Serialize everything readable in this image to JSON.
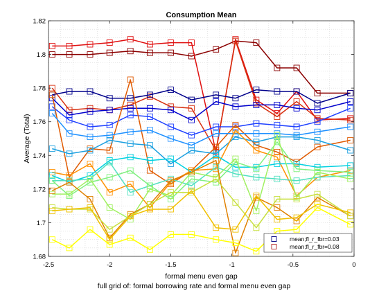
{
  "chart_data": {
    "type": "line",
    "title": "Consumption Mean",
    "xlabel": "formal menu even gap",
    "ylabel": "Average (Total)",
    "caption": "full grid of: formal borrowing rate and formal menu even gap",
    "xlim": [
      -2.5,
      0
    ],
    "ylim": [
      1.68,
      1.82
    ],
    "xticks": [
      "-2.5",
      "-2",
      "-1.5",
      "-1",
      "-0.5",
      "0"
    ],
    "yticks": [
      "1.68",
      "1.7",
      "1.72",
      "1.74",
      "1.76",
      "1.78",
      "1.8",
      "1.82"
    ],
    "grid": true,
    "legend": {
      "position": "bottom-right",
      "entries": [
        {
          "label": "mean;fl_r_fbr=0.03",
          "color": "#000080"
        },
        {
          "label": "mean;fl_r_fbr=0.08",
          "color": "#b22222"
        }
      ]
    },
    "x": [
      -2.47,
      -2.33,
      -2.16,
      -2.0,
      -1.83,
      -1.67,
      -1.5,
      -1.33,
      -1.13,
      -0.97,
      -0.8,
      -0.63,
      -0.47,
      -0.3,
      -0.03
    ],
    "series": [
      {
        "name": "s1",
        "color": "#8b0000",
        "values": [
          1.8,
          1.8,
          1.8,
          1.801,
          1.802,
          1.801,
          1.801,
          1.799,
          1.803,
          1.808,
          1.807,
          1.792,
          1.792,
          1.777,
          1.777
        ]
      },
      {
        "name": "s2",
        "color": "#e01010",
        "values": [
          1.805,
          1.805,
          1.806,
          1.807,
          1.809,
          1.806,
          1.807,
          1.807,
          1.742,
          1.809,
          1.773,
          1.765,
          1.778,
          1.761,
          1.762
        ]
      },
      {
        "name": "s3",
        "color": "#d83010",
        "values": [
          1.78,
          1.767,
          1.768,
          1.767,
          1.77,
          1.775,
          1.769,
          1.768,
          1.743,
          1.808,
          1.771,
          1.763,
          1.772,
          1.762,
          1.761
        ]
      },
      {
        "name": "s4",
        "color": "#00008b",
        "values": [
          1.776,
          1.778,
          1.778,
          1.774,
          1.774,
          1.776,
          1.779,
          1.773,
          1.776,
          1.774,
          1.779,
          1.778,
          1.778,
          1.771,
          1.777
        ]
      },
      {
        "name": "s5",
        "color": "#0000cd",
        "values": [
          1.774,
          1.764,
          1.766,
          1.767,
          1.768,
          1.768,
          1.767,
          1.761,
          1.772,
          1.769,
          1.77,
          1.77,
          1.768,
          1.767,
          1.772
        ]
      },
      {
        "name": "s6",
        "color": "#1e40ff",
        "values": [
          1.769,
          1.761,
          1.757,
          1.758,
          1.764,
          1.763,
          1.757,
          1.752,
          1.757,
          1.757,
          1.759,
          1.758,
          1.757,
          1.76,
          1.768
        ]
      },
      {
        "name": "s7",
        "color": "#e05a00",
        "values": [
          1.776,
          1.727,
          1.744,
          1.743,
          1.785,
          1.731,
          1.723,
          1.731,
          1.745,
          1.758,
          1.746,
          1.742,
          1.736,
          1.745,
          1.749
        ]
      },
      {
        "name": "s8",
        "color": "#1e90ff",
        "values": [
          1.765,
          1.753,
          1.751,
          1.752,
          1.754,
          1.755,
          1.75,
          1.746,
          1.753,
          1.753,
          1.753,
          1.753,
          1.752,
          1.754,
          1.757
        ]
      },
      {
        "name": "s9",
        "color": "#1ca0e0",
        "values": [
          1.744,
          1.741,
          1.743,
          1.749,
          1.747,
          1.746,
          1.735,
          1.743,
          1.741,
          1.751,
          1.748,
          1.751,
          1.751,
          1.749,
          1.743
        ]
      },
      {
        "name": "s10",
        "color": "#ff9000",
        "values": [
          1.73,
          1.728,
          1.735,
          1.718,
          1.723,
          1.709,
          1.724,
          1.731,
          1.732,
          1.755,
          1.743,
          1.739,
          1.716,
          1.727,
          1.731
        ]
      },
      {
        "name": "s11",
        "color": "#00d0e0",
        "values": [
          1.728,
          1.724,
          1.728,
          1.737,
          1.739,
          1.737,
          1.738,
          1.73,
          1.74,
          1.733,
          1.733,
          1.735,
          1.735,
          1.733,
          1.734
        ]
      },
      {
        "name": "s12",
        "color": "#50e0c0",
        "values": [
          1.725,
          1.725,
          1.726,
          1.736,
          1.718,
          1.722,
          1.726,
          1.722,
          1.733,
          1.729,
          1.727,
          1.726,
          1.725,
          1.727,
          1.728
        ]
      },
      {
        "name": "s13",
        "color": "#80f080",
        "values": [
          1.725,
          1.716,
          1.724,
          1.727,
          1.731,
          1.722,
          1.714,
          1.726,
          1.724,
          1.736,
          1.732,
          1.748,
          1.732,
          1.731,
          1.73
        ]
      },
      {
        "name": "s14",
        "color": "#a0f060",
        "values": [
          1.717,
          1.717,
          1.726,
          1.709,
          1.702,
          1.72,
          1.716,
          1.73,
          1.727,
          1.738,
          1.707,
          1.752,
          1.715,
          1.73,
          1.726
        ]
      },
      {
        "name": "s15",
        "color": "#e08000",
        "values": [
          1.719,
          1.724,
          1.714,
          1.691,
          1.705,
          1.711,
          1.725,
          1.73,
          1.737,
          1.682,
          1.715,
          1.709,
          1.701,
          1.715,
          1.704
        ]
      },
      {
        "name": "s16",
        "color": "#c8e040",
        "values": [
          1.709,
          1.708,
          1.708,
          1.696,
          1.704,
          1.711,
          1.718,
          1.718,
          1.726,
          1.712,
          1.697,
          1.714,
          1.714,
          1.717,
          1.704
        ]
      },
      {
        "name": "s17",
        "color": "#f0c000",
        "values": [
          1.707,
          1.708,
          1.709,
          1.69,
          1.704,
          1.708,
          1.708,
          1.719,
          1.697,
          1.696,
          1.716,
          1.702,
          1.703,
          1.711,
          1.706
        ]
      },
      {
        "name": "s18",
        "color": "#ffff00",
        "values": [
          1.69,
          1.685,
          1.696,
          1.687,
          1.691,
          1.684,
          1.693,
          1.693,
          1.69,
          1.688,
          1.683,
          1.695,
          1.696,
          1.709,
          1.699
        ]
      }
    ]
  }
}
